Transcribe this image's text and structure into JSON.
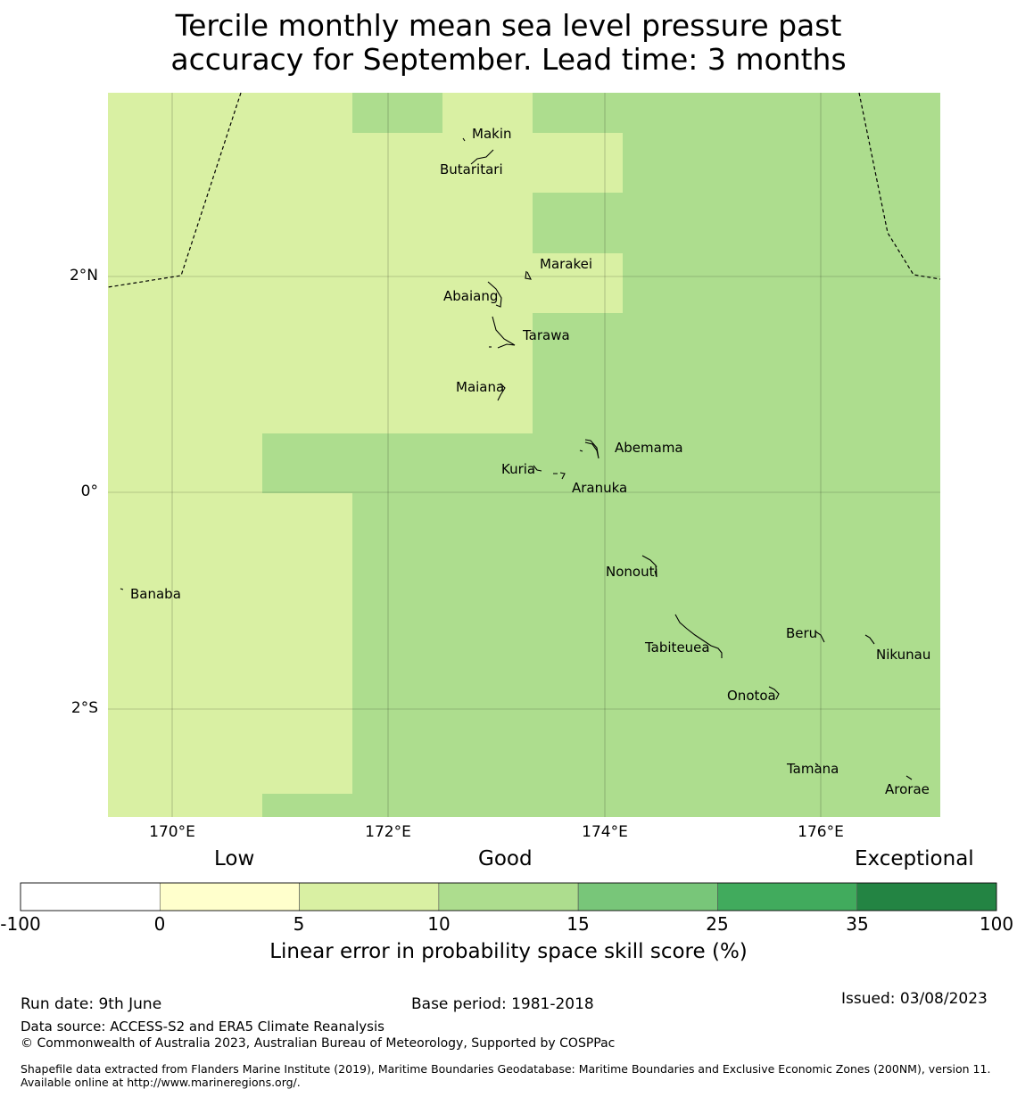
{
  "title": {
    "line1": "Tercile monthly mean sea level pressure past",
    "line2": "accuracy for September. Lead time: 3 months"
  },
  "map": {
    "lat_labels": [
      "2°N",
      "0°",
      "2°S"
    ],
    "lon_labels": [
      "170°E",
      "172°E",
      "174°E",
      "176°E"
    ],
    "places": [
      "Makin",
      "Butaritari",
      "Marakei",
      "Abaiang",
      "Tarawa",
      "Maiana",
      "Abemama",
      "Kuria",
      "Aranuka",
      "Banaba",
      "Nonouti",
      "Beru",
      "Tabiteuea",
      "Nikunau",
      "Onotoa",
      "Tamana",
      "Arorae"
    ],
    "colors": {
      "cat_5_10": "#d9f0a3",
      "cat_10_15": "#addd8e"
    }
  },
  "colorbar": {
    "categories": [
      "Low",
      "Good",
      "Exceptional"
    ],
    "ticks": [
      "-100",
      "0",
      "5",
      "10",
      "15",
      "25",
      "35",
      "100"
    ],
    "colors": [
      "#ffffff",
      "#ffffcc",
      "#d9f0a3",
      "#addd8e",
      "#78c679",
      "#41ab5d",
      "#238443"
    ],
    "label": "Linear error in probability space skill score (%)"
  },
  "footer": {
    "run_date": "Run date: 9th June",
    "base_period": "Base period: 1981-2018",
    "issued": "Issued: 03/08/2023",
    "data_source": "Data source: ACCESS-S2 and ERA5 Climate Reanalysis",
    "copyright": "© Commonwealth of Australia 2023, Australian Bureau of Meteorology, Supported by COSPPac",
    "shapefile": "Shapefile data extracted from Flanders Marine Institute (2019), Maritime Boundaries Geodatabase: Maritime Boundaries and Exclusive Economic Zones (200NM), version 11. Available online at http://www.marineregions.org/."
  }
}
